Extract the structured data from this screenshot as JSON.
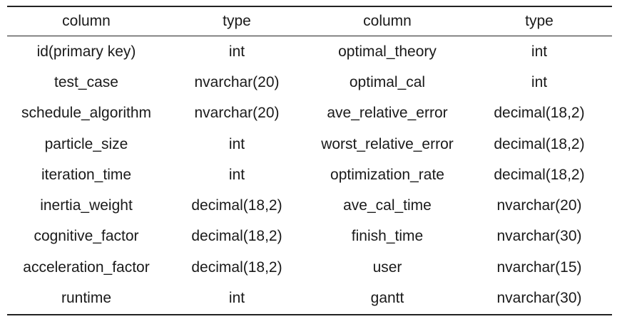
{
  "table": {
    "headers": [
      "column",
      "type",
      "column",
      "type"
    ],
    "rows": [
      [
        "id(primary key)",
        "int",
        "optimal_theory",
        "int"
      ],
      [
        "test_case",
        "nvarchar(20)",
        "optimal_cal",
        "int"
      ],
      [
        "schedule_algorithm",
        "nvarchar(20)",
        "ave_relative_error",
        "decimal(18,2)"
      ],
      [
        "particle_size",
        "int",
        "worst_relative_error",
        "decimal(18,2)"
      ],
      [
        "iteration_time",
        "int",
        "optimization_rate",
        "decimal(18,2)"
      ],
      [
        "inertia_weight",
        "decimal(18,2)",
        "ave_cal_time",
        "nvarchar(20)"
      ],
      [
        "cognitive_factor",
        "decimal(18,2)",
        "finish_time",
        "nvarchar(30)"
      ],
      [
        "acceleration_factor",
        "decimal(18,2)",
        "user",
        "nvarchar(15)"
      ],
      [
        "runtime",
        "int",
        "gantt",
        "nvarchar(30)"
      ]
    ]
  }
}
